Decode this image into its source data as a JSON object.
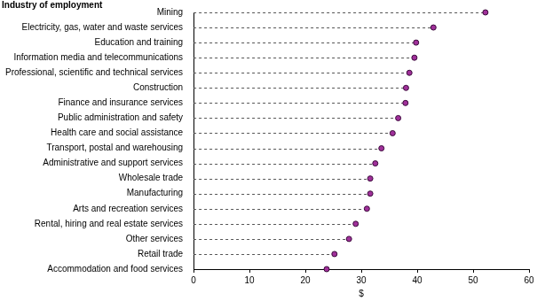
{
  "chart_data": {
    "type": "dot",
    "orientation": "horizontal",
    "ylabel": "Industry of employment",
    "xlabel": "$",
    "categories": [
      "Mining",
      "Electricity, gas, water and waste services",
      "Education and training",
      "Information media and telecommunications",
      "Professional, scientific and technical services",
      "Construction",
      "Finance and insurance services",
      "Public administration and safety",
      "Health care and social assistance",
      "Transport, postal and warehousing",
      "Administrative and support services",
      "Wholesale trade",
      "Manufacturing",
      "Arts and recreation services",
      "Rental, hiring and real estate services",
      "Other services",
      "Retail trade",
      "Accommodation and food services"
    ],
    "values": [
      52.2,
      42.9,
      39.8,
      39.5,
      38.6,
      38.0,
      37.9,
      36.6,
      35.6,
      33.6,
      32.5,
      31.6,
      31.6,
      31.0,
      29.0,
      27.8,
      25.2,
      23.8
    ],
    "color": "#a0309a",
    "marker": "circle",
    "line_style": "dashed",
    "xlim": [
      0,
      60
    ],
    "xticks": [
      0,
      10,
      20,
      30,
      40,
      50,
      60
    ],
    "grid": false
  }
}
